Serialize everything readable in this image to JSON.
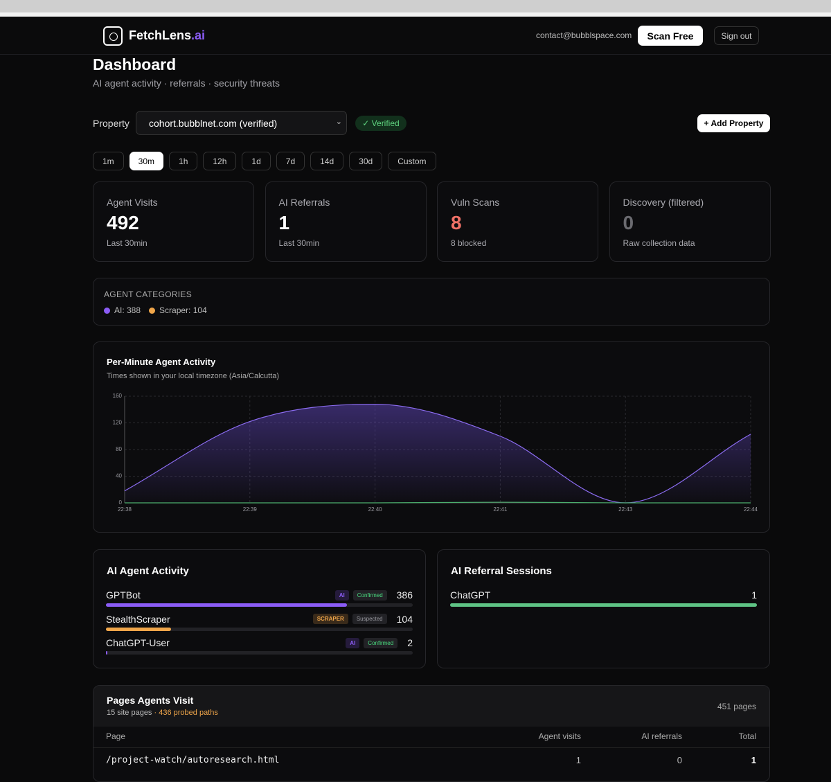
{
  "header": {
    "brand": "FetchLens",
    "brand_suffix": ".ai",
    "email": "contact@bubblspace.com",
    "scan_button": "Scan Free",
    "signout_button": "Sign out"
  },
  "page": {
    "title": "Dashboard",
    "subtitle": "AI agent activity · referrals · security threats"
  },
  "property": {
    "label": "Property",
    "selected": "cohort.bubblnet.com (verified)",
    "badge": "Verified",
    "add_button": "+ Add Property"
  },
  "ranges": [
    {
      "label": "1m",
      "active": false
    },
    {
      "label": "30m",
      "active": true
    },
    {
      "label": "1h",
      "active": false
    },
    {
      "label": "12h",
      "active": false
    },
    {
      "label": "1d",
      "active": false
    },
    {
      "label": "7d",
      "active": false
    },
    {
      "label": "14d",
      "active": false
    },
    {
      "label": "30d",
      "active": false
    },
    {
      "label": "Custom",
      "active": false
    }
  ],
  "stats": [
    {
      "label": "Agent Visits",
      "value": 492,
      "note": "Last 30min",
      "color": "#ffffff"
    },
    {
      "label": "AI Referrals",
      "value": 1,
      "note": "Last 30min",
      "color": "#ffffff"
    },
    {
      "label": "Vuln Scans",
      "value": 8,
      "note": "8 blocked",
      "color": "#f07167"
    },
    {
      "label": "Discovery (filtered)",
      "value": 0,
      "note": "Raw collection data",
      "color": "#6b6b70"
    }
  ],
  "agent_categories": {
    "title": "AGENT CATEGORIES",
    "items": [
      {
        "label": "AI: 388",
        "color": "#8b5cf6"
      },
      {
        "label": "Scraper: 104",
        "color": "#f0a64a"
      }
    ]
  },
  "chart_data": {
    "type": "area",
    "title": "Per-Minute Agent Activity",
    "subtitle": "Times shown in your local timezone (Asia/Calcutta)",
    "categories": [
      "22:38",
      "22:39",
      "22:40",
      "22:41",
      "22:43",
      "22:44"
    ],
    "series": [
      {
        "color": "#8b6cf0",
        "values": [
          18,
          122,
          148,
          100,
          0,
          103
        ]
      },
      {
        "color": "#4caf6e",
        "values": [
          0,
          0,
          0,
          1,
          0,
          0
        ]
      }
    ],
    "ylim": [
      0,
      160
    ],
    "yticks": [
      0,
      40,
      80,
      120,
      160
    ],
    "grid": true
  },
  "agent_activity": {
    "title": "AI Agent Activity",
    "rows": [
      {
        "name": "GPTBot",
        "tag": "AI",
        "status": "Confirmed",
        "value": 386,
        "color": "#8b5cf6",
        "status_color": "#4ade80"
      },
      {
        "name": "StealthScraper",
        "tag": "SCRAPER",
        "status": "Suspected",
        "value": 104,
        "color": "#f0a64a",
        "status_color": "#9a9aa0"
      },
      {
        "name": "ChatGPT-User",
        "tag": "AI",
        "status": "Confirmed",
        "value": 2,
        "color": "#8b5cf6",
        "status_color": "#4ade80"
      }
    ]
  },
  "referrals": {
    "title": "AI Referral Sessions",
    "rows": [
      {
        "name": "ChatGPT",
        "value": 1,
        "color": "#5fc485"
      }
    ]
  },
  "pages_table": {
    "title": "Pages Agents Visit",
    "site_pages": "15 site pages",
    "separator": "·",
    "probed": "436 probed paths",
    "total_label": "451 pages",
    "columns": [
      "Page",
      "Agent visits",
      "AI referrals",
      "Total"
    ],
    "rows": [
      [
        "/project-watch/autoresearch.html",
        1,
        0,
        1
      ]
    ]
  }
}
